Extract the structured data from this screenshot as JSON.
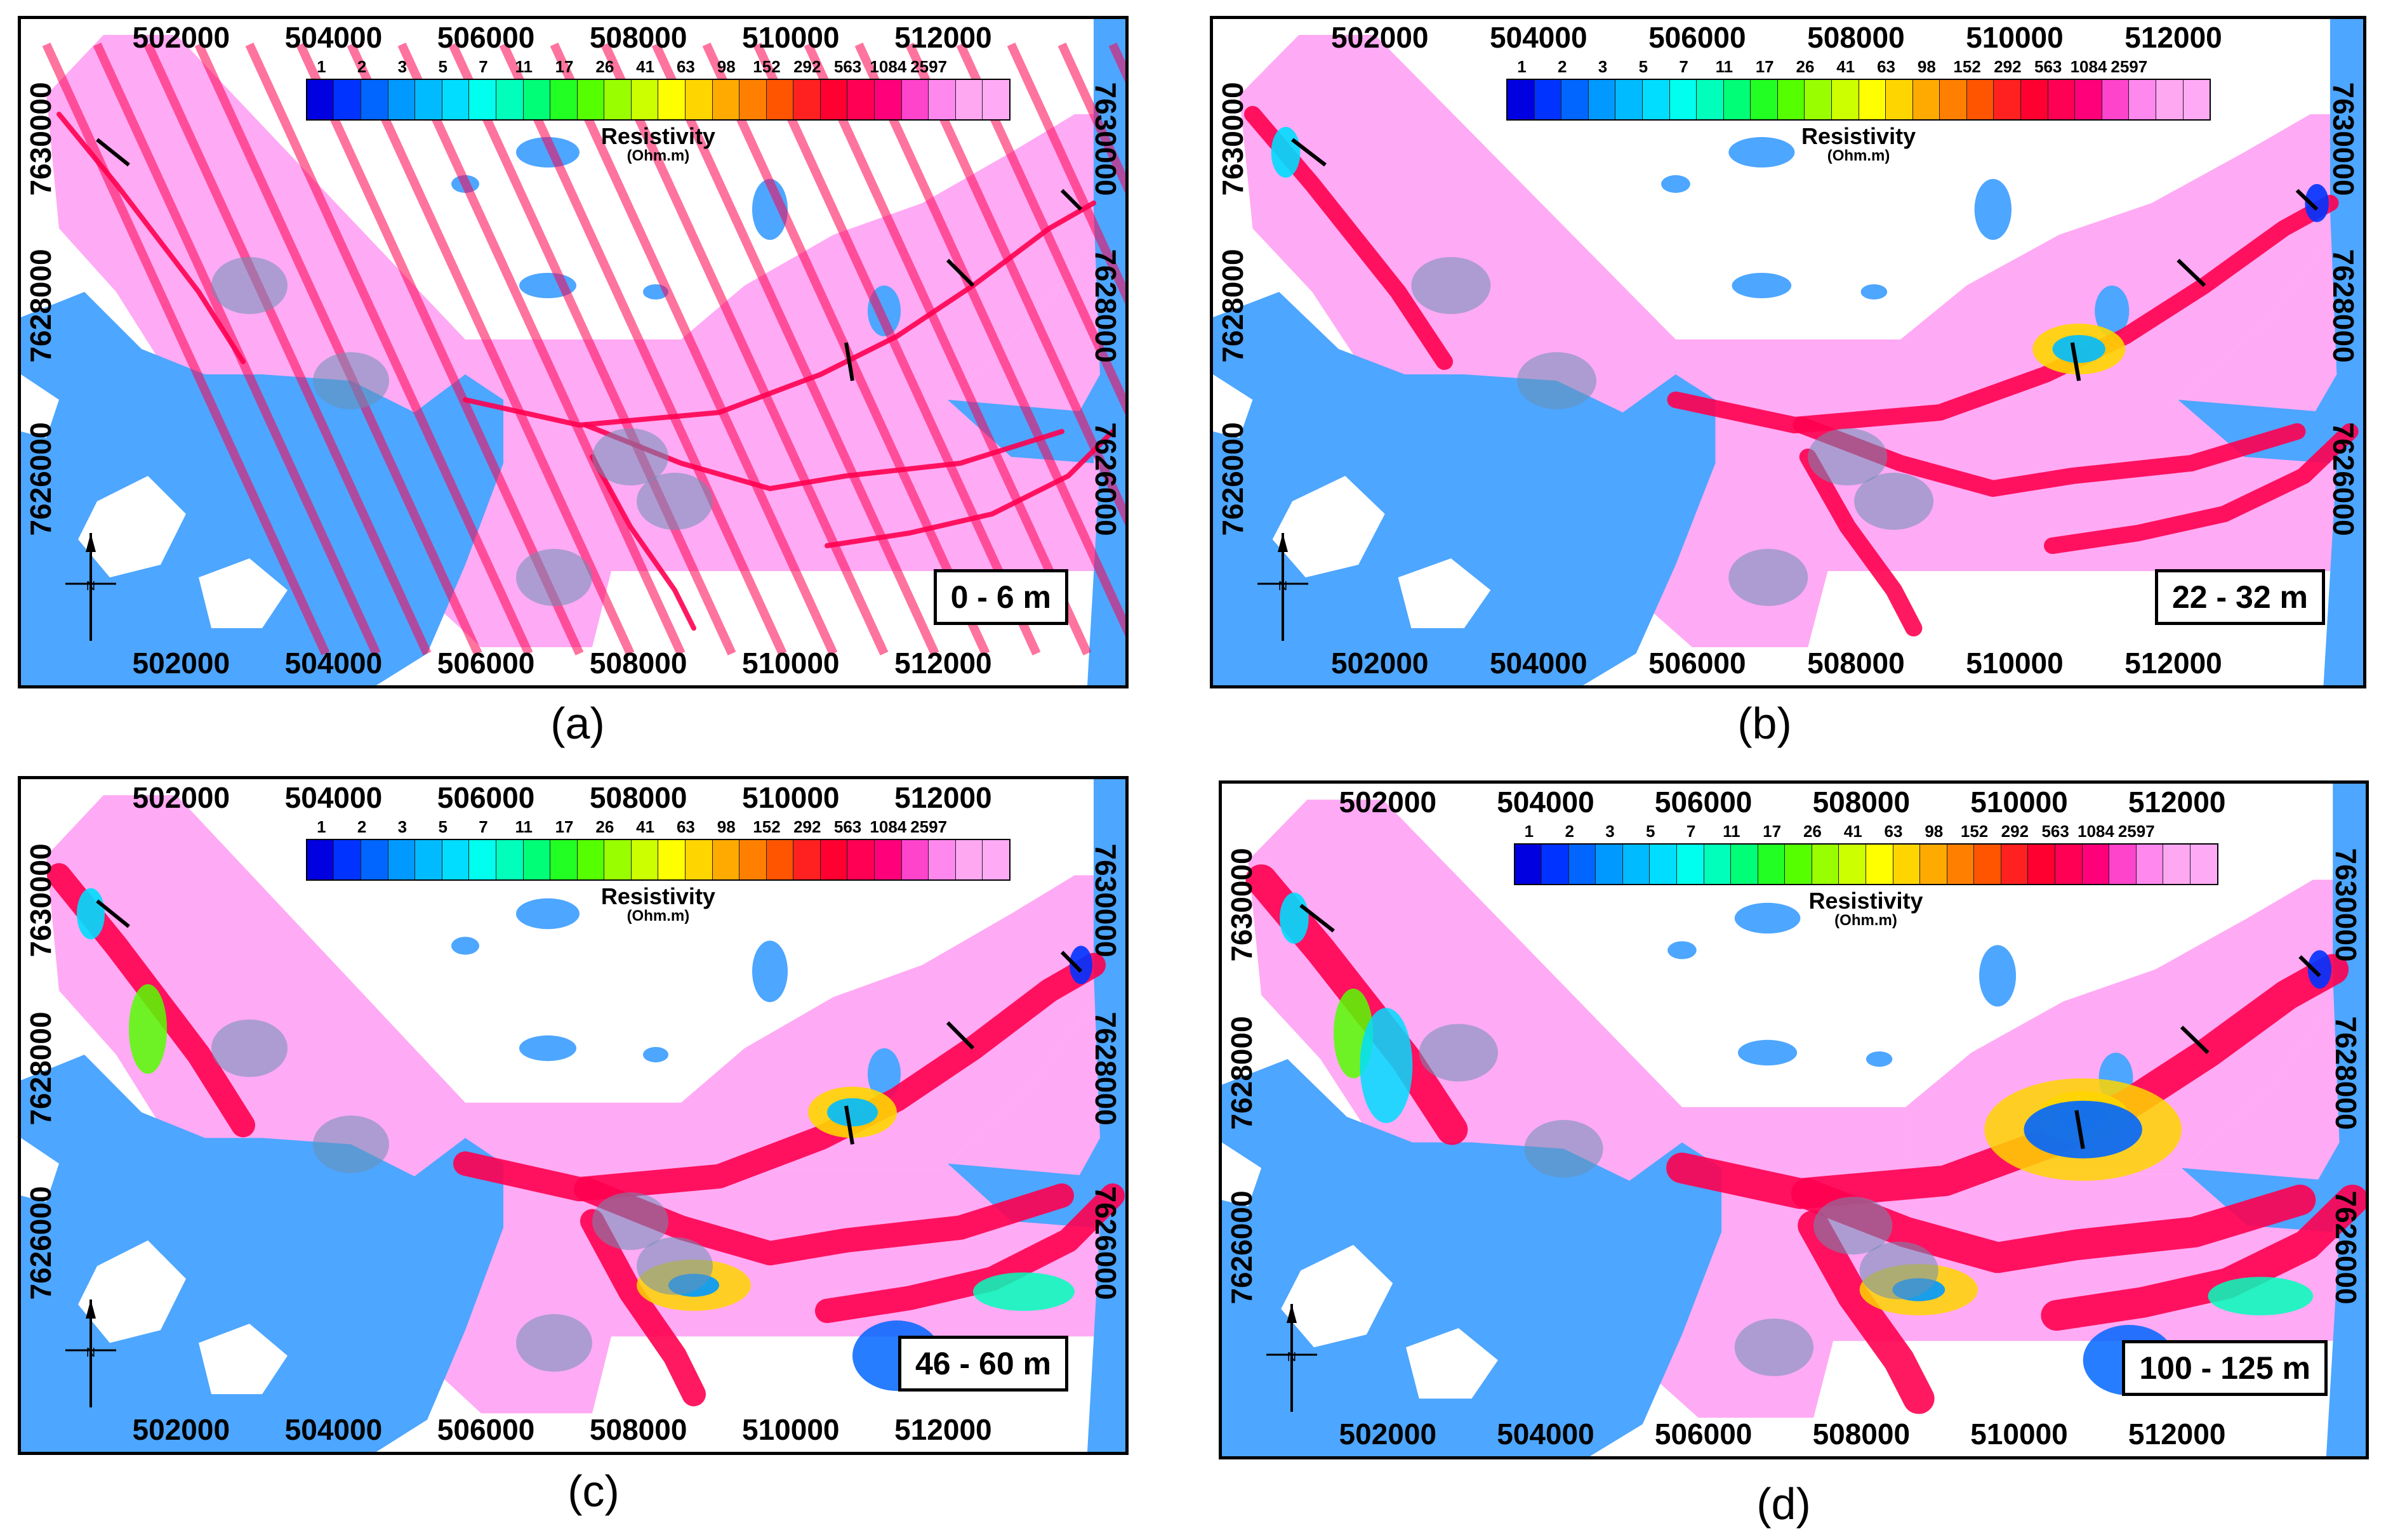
{
  "x_ticks": [
    "502000",
    "504000",
    "506000",
    "508000",
    "510000",
    "512000"
  ],
  "y_ticks": [
    "7630000",
    "7628000",
    "7626000"
  ],
  "legend": {
    "title": "Resistivity",
    "unit": "(Ohm.m)",
    "labels": [
      "1",
      "2",
      "3",
      "5",
      "7",
      "11",
      "17",
      "26",
      "41",
      "63",
      "98",
      "152",
      "292",
      "563",
      "1084",
      "2597"
    ],
    "colors": [
      "#0000e0",
      "#0033ff",
      "#0066ff",
      "#0099ff",
      "#00bbff",
      "#00ddff",
      "#00ffee",
      "#00ffbb",
      "#00ff77",
      "#22ff22",
      "#55ff00",
      "#99ff00",
      "#ccff00",
      "#ffff00",
      "#ffd500",
      "#ffaa00",
      "#ff8000",
      "#ff5500",
      "#ff2020",
      "#ff0030",
      "#ff0055",
      "#ff007a",
      "#ff44cc",
      "#ff88ee",
      "#ffa8f2",
      "#ffaaf4"
    ]
  },
  "colors": {
    "water": "#4da6ff",
    "resistive_background": "#ffaaf4",
    "conductor": "#ff0050",
    "land": "#ffffff"
  },
  "panels": [
    {
      "id": "a",
      "depth": "0 - 6 m",
      "caption": "(a)"
    },
    {
      "id": "b",
      "depth": "22 - 32 m",
      "caption": "(b)"
    },
    {
      "id": "c",
      "depth": "46 - 60 m",
      "caption": "(c)"
    },
    {
      "id": "d",
      "depth": "100 - 125 m",
      "caption": "(d)"
    }
  ]
}
